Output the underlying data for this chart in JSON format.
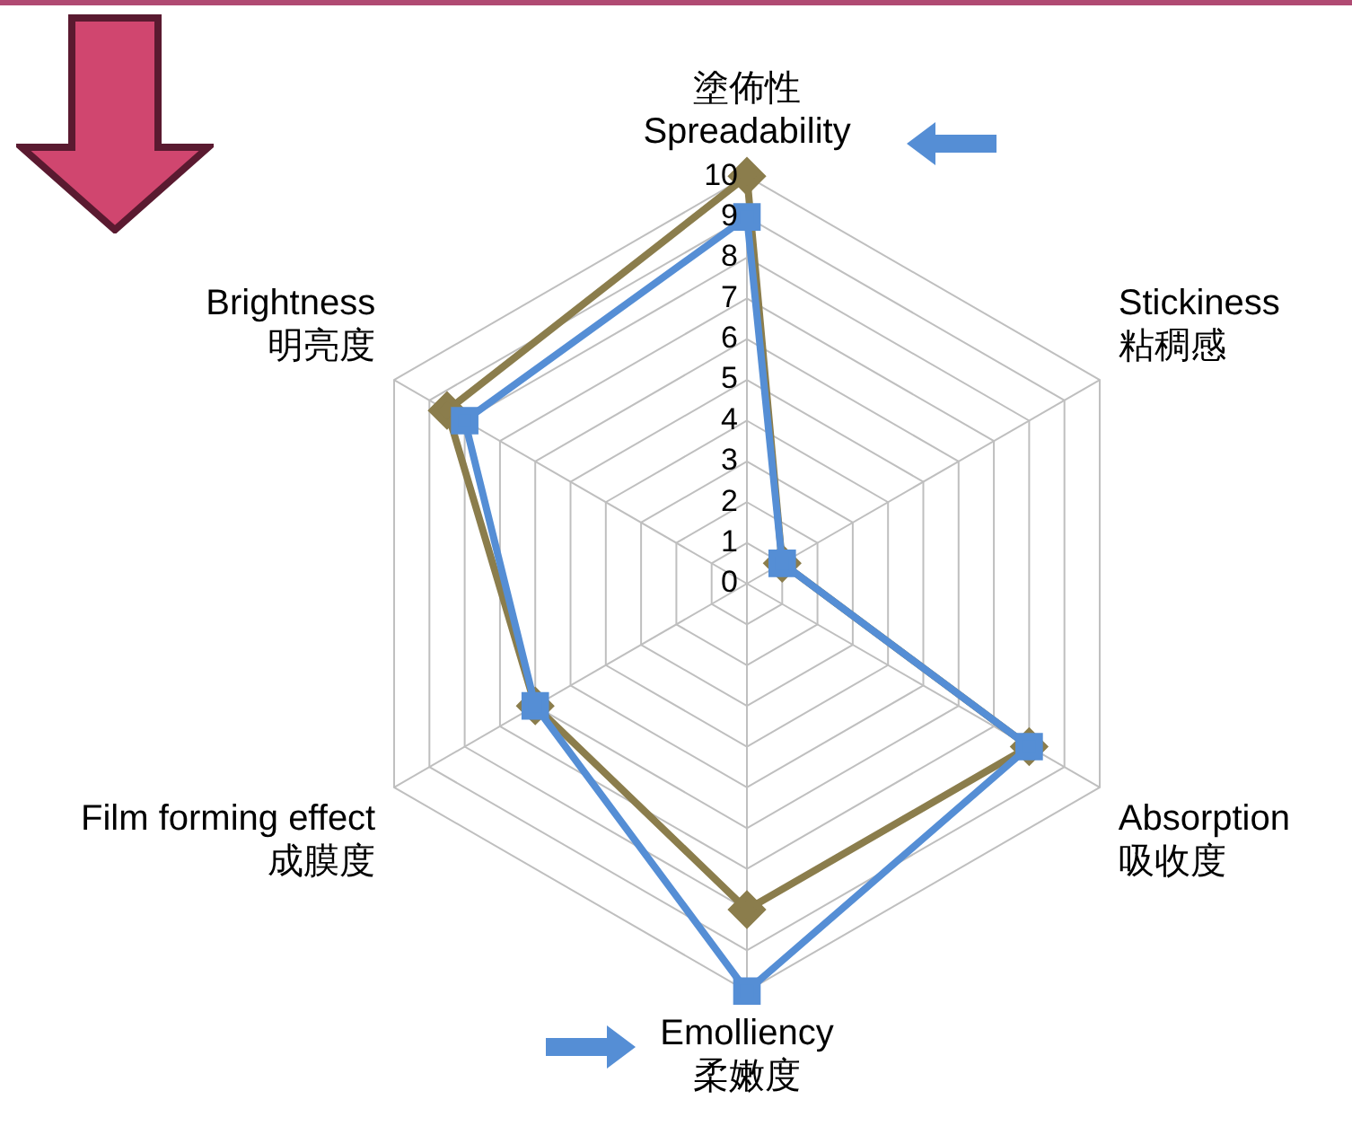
{
  "chart_data": {
    "type": "radar",
    "categories": [
      "塗佈性\nSpreadability",
      "Stickiness\n粘稠感",
      "Absorption\n吸收度",
      "Emolliency\n柔嫩度",
      "Film forming effect\n成膜度",
      "Brightness\n明亮度"
    ],
    "series": [
      {
        "color": "#8b7d4c",
        "marker": "diamond",
        "values": [
          10,
          1,
          8,
          8,
          6,
          8.5
        ]
      },
      {
        "color": "#558ed5",
        "marker": "square",
        "values": [
          9,
          1,
          8,
          10,
          6,
          8
        ]
      }
    ],
    "ylim": [
      0,
      10
    ],
    "yticks": [
      0,
      1,
      2,
      3,
      4,
      5,
      6,
      7,
      8,
      9,
      10
    ],
    "grid": true,
    "legend": false
  }
}
